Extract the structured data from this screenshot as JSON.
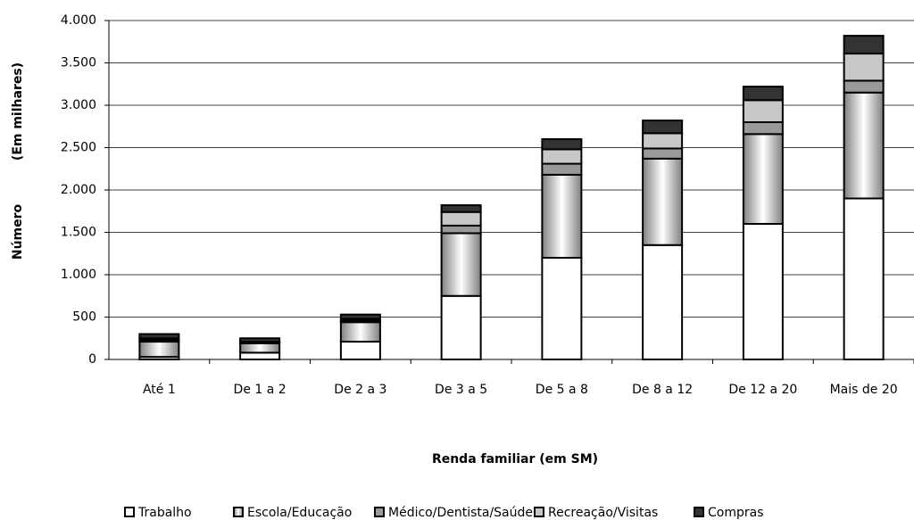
{
  "chart_data": {
    "type": "stacked-bar",
    "y_title": "Número",
    "y_subtitle": "(Em milhares)",
    "x_title": "Renda familiar (em SM)",
    "categories": [
      "Até 1",
      "De 1 a 2",
      "De 2 a 3",
      "De 3 a 5",
      "De 5 a 8",
      "De 8 a 12",
      "De 12 a 20",
      "Mais de 20"
    ],
    "series": [
      {
        "name": "Trabalho",
        "color": "#ffffff",
        "values": [
          30,
          80,
          210,
          750,
          1200,
          1350,
          1600,
          1900
        ]
      },
      {
        "name": "Escola/Educação",
        "color": "#808080",
        "gradient": true,
        "values": [
          180,
          110,
          230,
          740,
          980,
          1020,
          1060,
          1250
        ]
      },
      {
        "name": "Médico/Dentista/Saúde",
        "color": "#999999",
        "values": [
          20,
          10,
          20,
          90,
          130,
          120,
          140,
          140
        ]
      },
      {
        "name": "Recreação/Visitas",
        "color": "#c8c8c8",
        "values": [
          20,
          10,
          20,
          160,
          170,
          180,
          260,
          320
        ]
      },
      {
        "name": "Compras",
        "color": "#333333",
        "values": [
          50,
          40,
          50,
          80,
          120,
          150,
          160,
          210
        ]
      }
    ],
    "ylim": [
      0,
      4000
    ],
    "yticks": [
      0,
      500,
      {
        "value": 1000,
        "label": "1.000"
      },
      {
        "value": 1500,
        "label": "1.500"
      },
      {
        "value": 2000,
        "label": "2.000"
      },
      {
        "value": 2500,
        "label": "2.500"
      },
      {
        "value": 3000,
        "label": "3.000"
      },
      {
        "value": 3500,
        "label": "3.500"
      },
      {
        "value": 4000,
        "label": "4.000"
      }
    ],
    "grid": true
  }
}
